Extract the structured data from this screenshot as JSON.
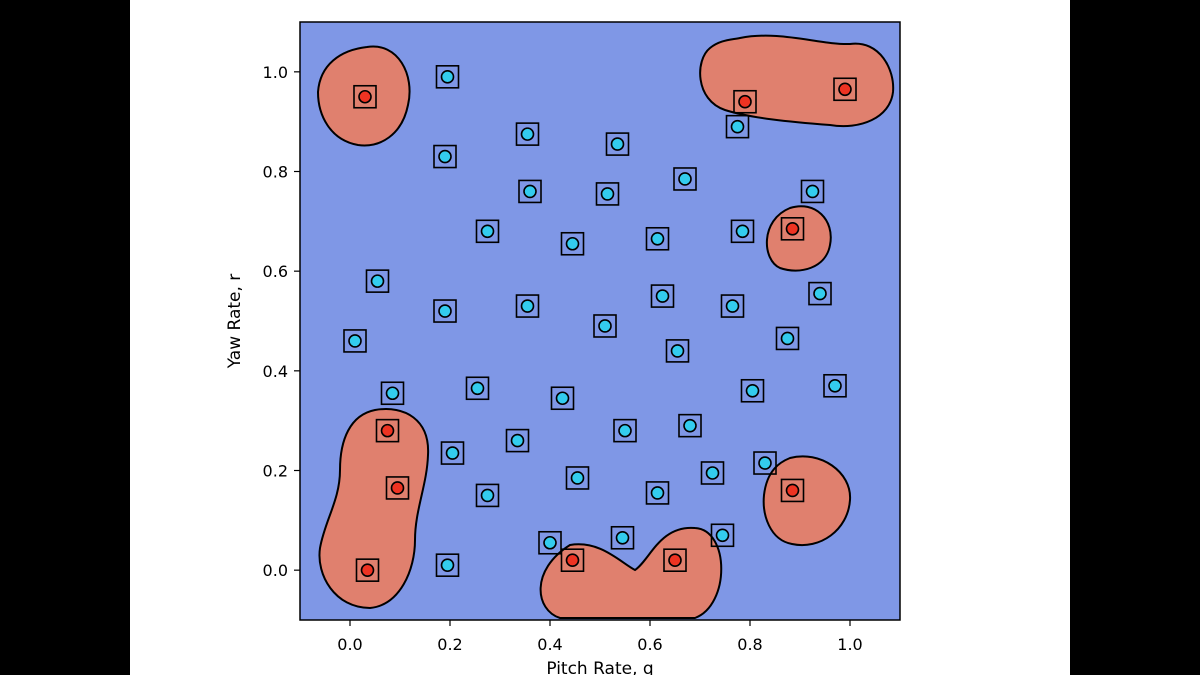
{
  "chart_data": {
    "type": "scatter",
    "title": "",
    "xlabel": "Pitch Rate, q",
    "ylabel": "Yaw Rate, r",
    "xlim": [
      -0.1,
      1.1
    ],
    "ylim": [
      -0.1,
      1.1
    ],
    "xticks": [
      "0.0",
      "0.2",
      "0.4",
      "0.6",
      "0.8",
      "1.0"
    ],
    "yticks": [
      "0.0",
      "0.2",
      "0.4",
      "0.6",
      "0.8",
      "1.0"
    ],
    "grid": false,
    "background_region_color": "#7f97e6",
    "region_color": "#e0806e",
    "series": [
      {
        "class": "red",
        "color": "#ee3322",
        "points": [
          [
            0.03,
            0.95
          ],
          [
            0.79,
            0.94
          ],
          [
            0.99,
            0.965
          ],
          [
            0.885,
            0.685
          ],
          [
            0.075,
            0.28
          ],
          [
            0.095,
            0.165
          ],
          [
            0.035,
            0.0
          ],
          [
            0.445,
            0.02
          ],
          [
            0.65,
            0.02
          ],
          [
            0.885,
            0.16
          ]
        ]
      },
      {
        "class": "cyan",
        "color": "#33ccee",
        "points": [
          [
            0.195,
            0.99
          ],
          [
            0.19,
            0.83
          ],
          [
            0.355,
            0.875
          ],
          [
            0.535,
            0.855
          ],
          [
            0.775,
            0.89
          ],
          [
            0.67,
            0.785
          ],
          [
            0.36,
            0.76
          ],
          [
            0.515,
            0.755
          ],
          [
            0.925,
            0.76
          ],
          [
            0.275,
            0.68
          ],
          [
            0.445,
            0.655
          ],
          [
            0.615,
            0.665
          ],
          [
            0.785,
            0.68
          ],
          [
            0.055,
            0.58
          ],
          [
            0.19,
            0.52
          ],
          [
            0.355,
            0.53
          ],
          [
            0.625,
            0.55
          ],
          [
            0.765,
            0.53
          ],
          [
            0.94,
            0.555
          ],
          [
            0.01,
            0.46
          ],
          [
            0.51,
            0.49
          ],
          [
            0.655,
            0.44
          ],
          [
            0.875,
            0.465
          ],
          [
            0.085,
            0.355
          ],
          [
            0.255,
            0.365
          ],
          [
            0.425,
            0.345
          ],
          [
            0.805,
            0.36
          ],
          [
            0.97,
            0.37
          ],
          [
            0.205,
            0.235
          ],
          [
            0.335,
            0.26
          ],
          [
            0.55,
            0.28
          ],
          [
            0.68,
            0.29
          ],
          [
            0.275,
            0.15
          ],
          [
            0.455,
            0.185
          ],
          [
            0.615,
            0.155
          ],
          [
            0.725,
            0.195
          ],
          [
            0.83,
            0.215
          ],
          [
            0.4,
            0.055
          ],
          [
            0.545,
            0.065
          ],
          [
            0.745,
            0.07
          ],
          [
            0.195,
            0.01
          ]
        ]
      }
    ]
  }
}
